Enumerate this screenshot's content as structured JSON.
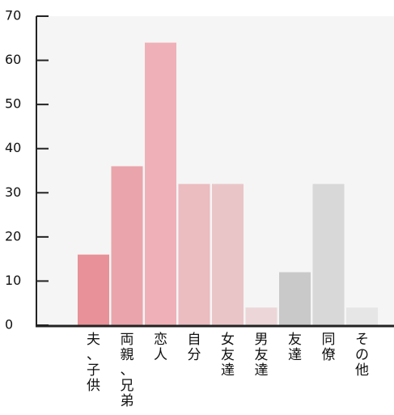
{
  "chart_data": {
    "type": "bar",
    "title": "",
    "xlabel": "",
    "ylabel": "",
    "ylim": [
      0,
      70
    ],
    "yticks": [
      0,
      10,
      20,
      30,
      40,
      50,
      60,
      70
    ],
    "grid": false,
    "categories": [
      "夫、子供",
      "両親、兄弟",
      "恋人",
      "自分",
      "女友達",
      "男友達",
      "友達",
      "同僚",
      "その他"
    ],
    "values": [
      16,
      36,
      64,
      32,
      32,
      4,
      12,
      32,
      4
    ],
    "colors": [
      "#e89198",
      "#eaa4ab",
      "#efb1b7",
      "#ebbcc0",
      "#eac5c8",
      "#ecd6d7",
      "#c9c9c9",
      "#d8d8d8",
      "#e6e6e6"
    ],
    "plot_background": "#f5f5f5"
  }
}
